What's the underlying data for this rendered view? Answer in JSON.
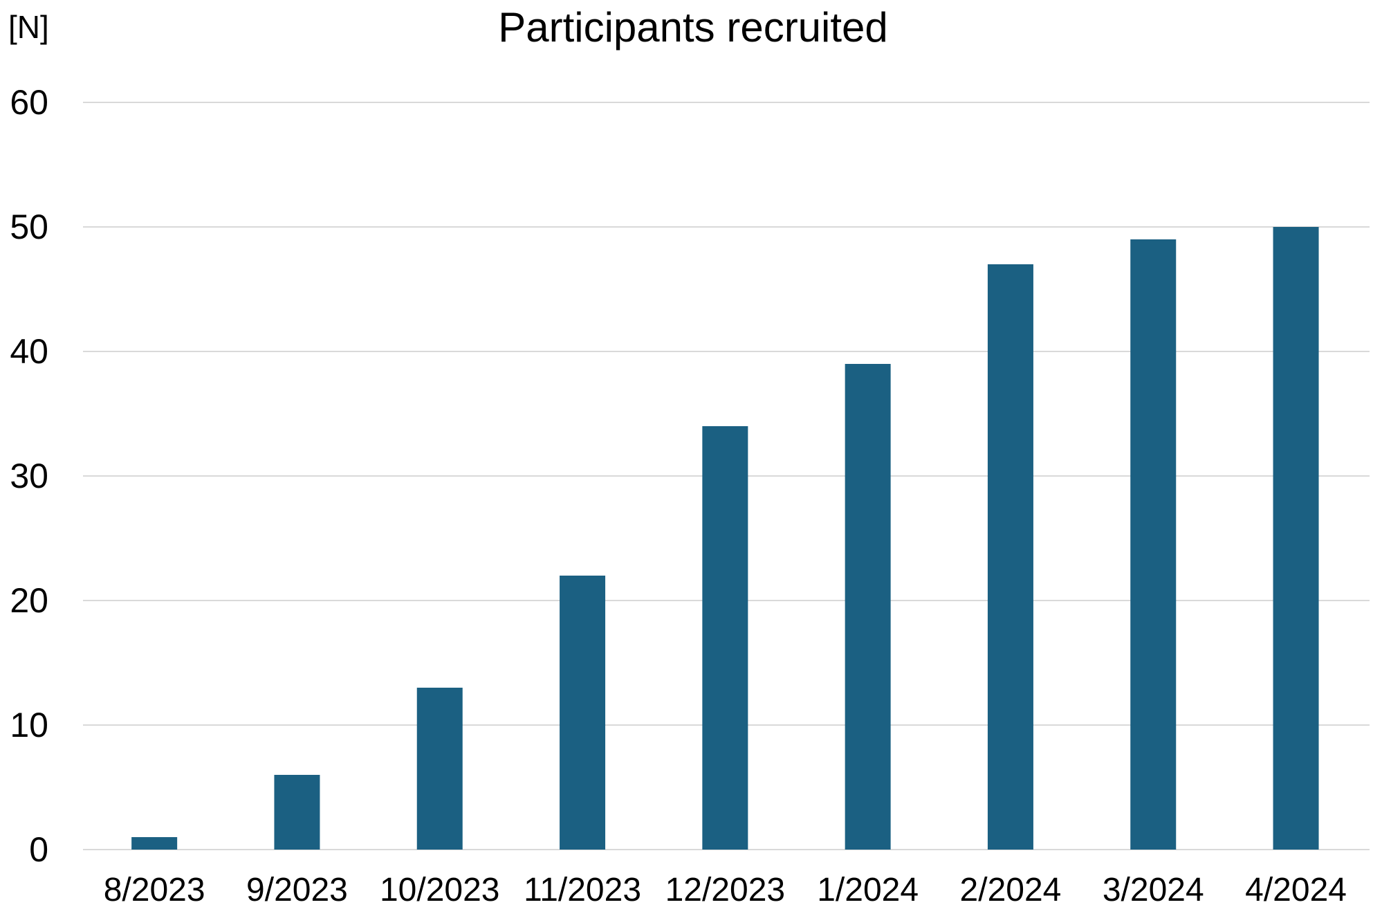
{
  "chart_data": {
    "type": "bar",
    "title": "Participants recruited",
    "ylabel": "[N]",
    "xlabel": "",
    "categories": [
      "8/2023",
      "9/2023",
      "10/2023",
      "11/2023",
      "12/2023",
      "1/2024",
      "2/2024",
      "3/2024",
      "4/2024"
    ],
    "values": [
      1,
      6,
      13,
      22,
      34,
      39,
      47,
      49,
      50
    ],
    "ylim": [
      0,
      60
    ],
    "yticks": [
      0,
      10,
      20,
      30,
      40,
      50,
      60
    ],
    "grid": true,
    "legend": "none",
    "bar_color": "#1b6082",
    "grid_color": "#d9d9d9"
  }
}
